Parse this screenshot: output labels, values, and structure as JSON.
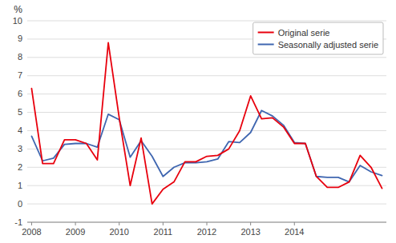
{
  "chart_data": {
    "type": "line",
    "x": [
      2008.0,
      2008.25,
      2008.5,
      2008.75,
      2009.0,
      2009.25,
      2009.5,
      2009.75,
      2010.0,
      2010.25,
      2010.5,
      2010.75,
      2011.0,
      2011.25,
      2011.5,
      2011.75,
      2012.0,
      2012.25,
      2012.5,
      2012.75,
      2013.0,
      2013.25,
      2013.5,
      2013.75,
      2014.0,
      2014.25,
      2014.5,
      2014.75,
      2015.0,
      2015.25,
      2015.5,
      2015.75,
      2016.0
    ],
    "series": [
      {
        "name": "Original serie",
        "color": "#e8000d",
        "values": [
          6.3,
          2.2,
          2.2,
          3.5,
          3.5,
          3.3,
          2.4,
          8.8,
          4.7,
          1.0,
          3.6,
          0.0,
          0.8,
          1.2,
          2.3,
          2.3,
          2.6,
          2.65,
          3.0,
          4.0,
          5.9,
          4.65,
          4.7,
          4.2,
          3.3,
          3.3,
          1.5,
          0.9,
          0.9,
          1.2,
          2.65,
          2.0,
          0.85
        ]
      },
      {
        "name": "Seasonally adjusted serie",
        "color": "#3f66b0",
        "values": [
          3.7,
          2.35,
          2.5,
          3.25,
          3.3,
          3.3,
          3.1,
          4.9,
          4.6,
          2.55,
          3.45,
          2.6,
          1.5,
          2.0,
          2.25,
          2.25,
          2.3,
          2.45,
          3.4,
          3.35,
          3.9,
          5.1,
          4.8,
          4.3,
          3.35,
          3.3,
          1.5,
          1.45,
          1.45,
          1.2,
          2.1,
          1.75,
          1.55
        ]
      }
    ],
    "y_label": "%",
    "xlim": [
      2007.9,
      2016.1
    ],
    "xticks": [
      2008,
      2009,
      2010,
      2011,
      2012,
      2013,
      2014
    ],
    "ylim": [
      -1,
      10
    ],
    "yticks": [
      -1,
      0,
      1,
      2,
      3,
      4,
      5,
      6,
      7,
      8,
      9,
      10
    ],
    "grid": true,
    "legend": "upper right"
  }
}
